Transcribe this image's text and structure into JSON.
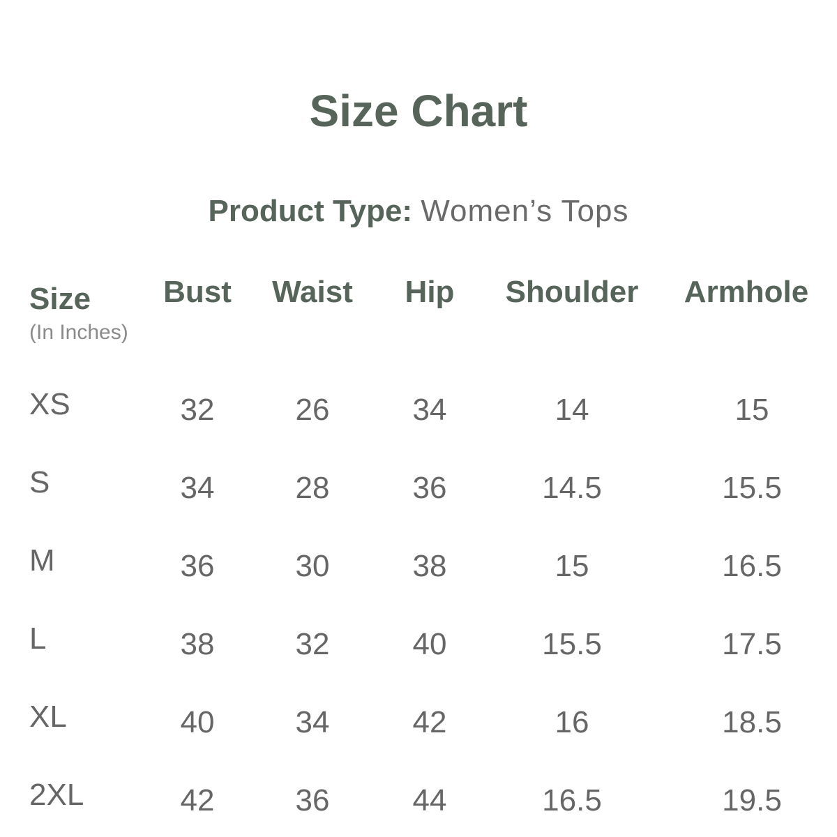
{
  "title": "Size Chart",
  "product_type": {
    "label": "Product Type:",
    "value": "Women’s Tops"
  },
  "table": {
    "size_header": "Size",
    "unit_note": "(In Inches)",
    "columns": [
      "Bust",
      "Waist",
      "Hip",
      "Shoulder",
      "Armhole"
    ],
    "rows": [
      {
        "size": "XS",
        "values": [
          "32",
          "26",
          "34",
          "14",
          "15"
        ]
      },
      {
        "size": "S",
        "values": [
          "34",
          "28",
          "36",
          "14.5",
          "15.5"
        ]
      },
      {
        "size": "M",
        "values": [
          "36",
          "30",
          "38",
          "15",
          "16.5"
        ]
      },
      {
        "size": "L",
        "values": [
          "38",
          "32",
          "40",
          "15.5",
          "17.5"
        ]
      },
      {
        "size": "XL",
        "values": [
          "40",
          "34",
          "42",
          "16",
          "18.5"
        ]
      },
      {
        "size": "2XL",
        "values": [
          "42",
          "36",
          "44",
          "16.5",
          "19.5"
        ]
      }
    ]
  },
  "colors": {
    "heading": "#56645a",
    "body_text": "#666666",
    "background": "#ffffff"
  }
}
